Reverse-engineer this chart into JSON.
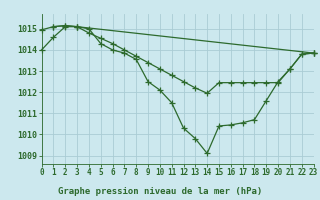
{
  "title": "Graphe pression niveau de la mer (hPa)",
  "background_color": "#cce8ee",
  "grid_color": "#b0d8de",
  "line_color": "#2d6a2d",
  "line1_x": [
    0,
    1,
    2,
    3,
    4,
    5,
    6,
    7,
    8,
    9,
    10,
    11,
    12,
    13,
    14,
    15,
    16,
    17,
    18,
    19,
    20,
    21,
    22,
    23
  ],
  "line1_y": [
    1014.0,
    1014.6,
    1015.1,
    1015.1,
    1015.0,
    1014.3,
    1014.0,
    1013.85,
    1013.55,
    1012.5,
    1012.1,
    1011.5,
    1010.3,
    1009.8,
    1009.1,
    1010.4,
    1010.45,
    1010.55,
    1010.7,
    1011.6,
    1012.5,
    1013.1,
    1013.8,
    1013.85
  ],
  "line2_x": [
    0,
    1,
    2,
    3,
    4,
    5,
    6,
    7,
    8,
    9,
    10,
    11,
    12,
    13,
    14,
    15,
    16,
    17,
    18,
    19,
    20,
    21,
    22,
    23
  ],
  "line2_y": [
    1014.95,
    1015.1,
    1015.15,
    1015.1,
    1014.8,
    1014.55,
    1014.3,
    1014.0,
    1013.7,
    1013.4,
    1013.1,
    1012.8,
    1012.5,
    1012.2,
    1011.95,
    1012.45,
    1012.45,
    1012.45,
    1012.45,
    1012.45,
    1012.45,
    1013.1,
    1013.8,
    1013.85
  ],
  "line3_x": [
    1,
    2,
    3,
    23
  ],
  "line3_y": [
    1015.1,
    1015.15,
    1015.1,
    1013.85
  ],
  "ylim": [
    1008.6,
    1015.7
  ],
  "xlim": [
    0,
    23
  ],
  "yticks": [
    1009,
    1010,
    1011,
    1012,
    1013,
    1014,
    1015
  ],
  "xticks": [
    0,
    1,
    2,
    3,
    4,
    5,
    6,
    7,
    8,
    9,
    10,
    11,
    12,
    13,
    14,
    15,
    16,
    17,
    18,
    19,
    20,
    21,
    22,
    23
  ],
  "marker": "+",
  "markersize": 4,
  "linewidth": 0.9,
  "title_fontsize": 6.5,
  "tick_fontsize": 5.5
}
